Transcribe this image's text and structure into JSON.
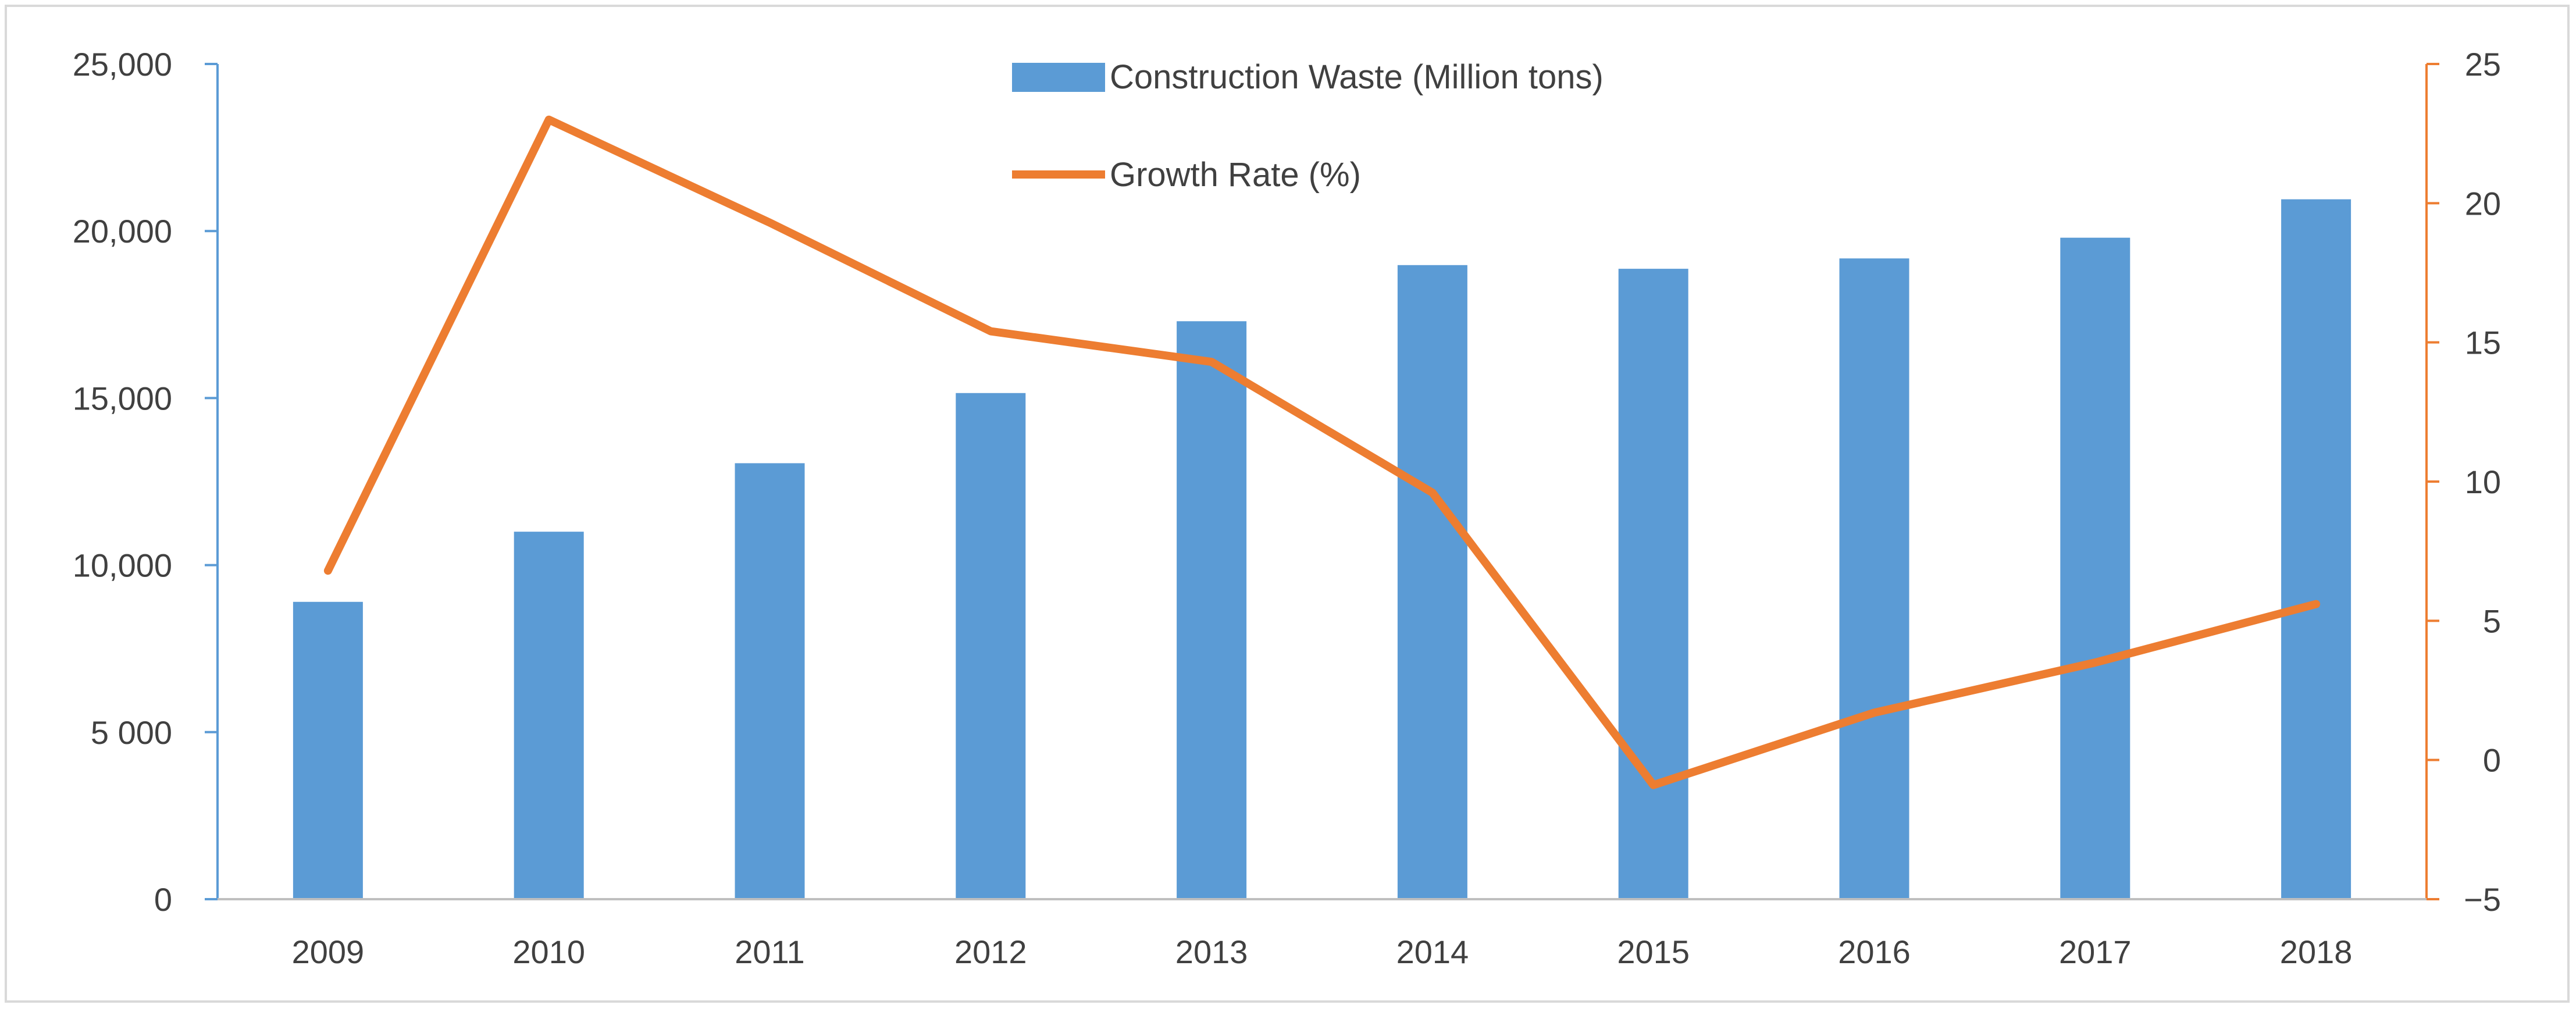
{
  "chart_data": {
    "type": "bar",
    "categories": [
      "2009",
      "2010",
      "2011",
      "2012",
      "2013",
      "2014",
      "2015",
      "2016",
      "2017",
      "2018"
    ],
    "series": [
      {
        "name": "Construction Waste (Million tons)",
        "type": "bar",
        "axis": "left",
        "color": "#5b9bd5",
        "values": [
          8900,
          11000,
          13050,
          15150,
          17300,
          18980,
          18870,
          19180,
          19800,
          20950
        ]
      },
      {
        "name": "Growth Rate (%)",
        "type": "line",
        "axis": "right",
        "color": "#ed7d31",
        "values": [
          6.8,
          23.0,
          19.3,
          15.4,
          14.3,
          9.6,
          -0.9,
          1.7,
          3.5,
          5.6
        ]
      }
    ],
    "y_left": {
      "ylim": [
        0,
        25000
      ],
      "ticks": [
        0,
        5000,
        10000,
        15000,
        20000,
        25000
      ],
      "tick_labels": [
        "0",
        "5 000",
        "10,000",
        "15,000",
        "20,000",
        "25,000"
      ],
      "color": "#5b9bd5"
    },
    "y_right": {
      "ylim": [
        -5,
        25
      ],
      "ticks": [
        -5,
        0,
        5,
        10,
        15,
        20,
        25
      ],
      "tick_labels": [
        "−5",
        "0",
        "5",
        "10",
        "15",
        "20",
        "25"
      ],
      "color": "#ed7d31"
    },
    "title": "",
    "xlabel": "",
    "grid": false,
    "legend_position": "top-center"
  }
}
